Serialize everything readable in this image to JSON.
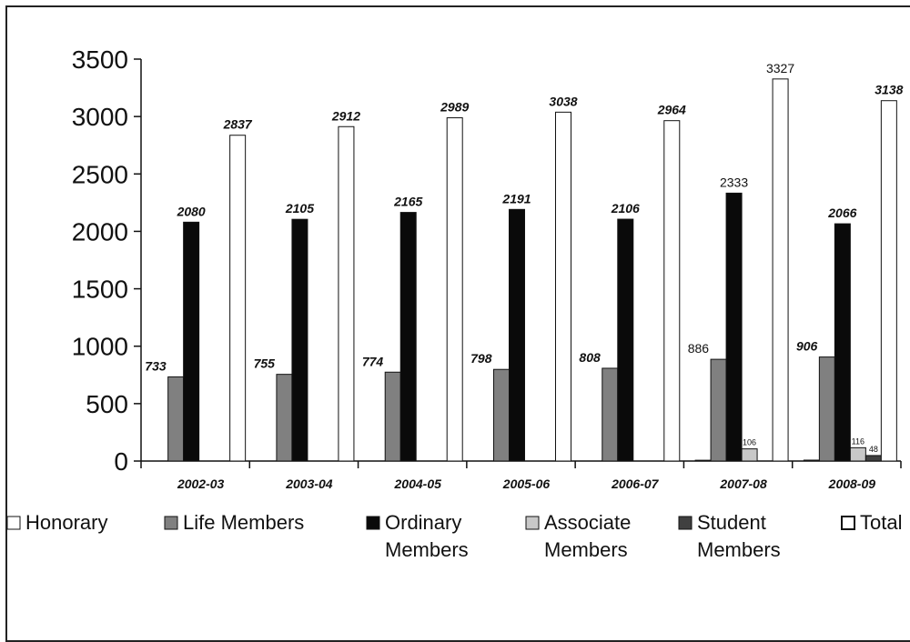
{
  "chart_data": {
    "type": "bar",
    "categories": [
      "2002-03",
      "2003-04",
      "2004-05",
      "2005-06",
      "2006-07",
      "2007-08",
      "2008-09"
    ],
    "ylim": [
      0,
      3500
    ],
    "yticks": [
      "0",
      "500",
      "1000",
      "1500",
      "2000",
      "2500",
      "3000",
      "3500"
    ],
    "grid": false,
    "legend_position": "bottom",
    "series": [
      {
        "name": "Honorary",
        "color": "#ffffff",
        "values": [
          0,
          0,
          0,
          0,
          0,
          7,
          8
        ],
        "labels": [
          "",
          "",
          "",
          "",
          "",
          "",
          ""
        ]
      },
      {
        "name": "Life Members",
        "color": "#808080",
        "values": [
          733,
          755,
          774,
          798,
          808,
          886,
          906
        ],
        "labels": [
          "733",
          "755",
          "774",
          "798",
          "808",
          "886",
          "906"
        ]
      },
      {
        "name": "Ordinary Members",
        "color": "#0a0a0a",
        "values": [
          2080,
          2105,
          2165,
          2191,
          2106,
          2333,
          2066
        ],
        "labels": [
          "2080",
          "2105",
          "2165",
          "2191",
          "2106",
          "2333",
          "2066"
        ]
      },
      {
        "name": "Associate Members",
        "color": "#c8c8c8",
        "values": [
          0,
          0,
          0,
          0,
          0,
          106,
          116
        ],
        "labels": [
          "",
          "",
          "",
          "",
          "",
          "106",
          "116"
        ]
      },
      {
        "name": "Student Members",
        "color": "#404040",
        "values": [
          0,
          0,
          0,
          0,
          0,
          0,
          48
        ],
        "labels": [
          "",
          "",
          "",
          "",
          "",
          "",
          "48"
        ]
      },
      {
        "name": "Total",
        "color": "#ffffff",
        "values": [
          2837,
          2912,
          2989,
          3038,
          2964,
          3327,
          3138
        ],
        "labels": [
          "2837",
          "2912",
          "2989",
          "3038",
          "2964",
          "3327",
          "3138"
        ]
      }
    ],
    "legend": [
      {
        "lines": [
          "Honorary"
        ],
        "swatch_color": "#ffffff"
      },
      {
        "lines": [
          "Life Members"
        ],
        "swatch_color": "#808080"
      },
      {
        "lines": [
          "Ordinary",
          "Members"
        ],
        "swatch_color": "#0a0a0a"
      },
      {
        "lines": [
          "Associate",
          "Members"
        ],
        "swatch_color": "#c8c8c8"
      },
      {
        "lines": [
          "Student",
          "Members"
        ],
        "swatch_color": "#404040"
      },
      {
        "lines": [
          "Total"
        ],
        "swatch_color": "#ffffff"
      }
    ]
  }
}
